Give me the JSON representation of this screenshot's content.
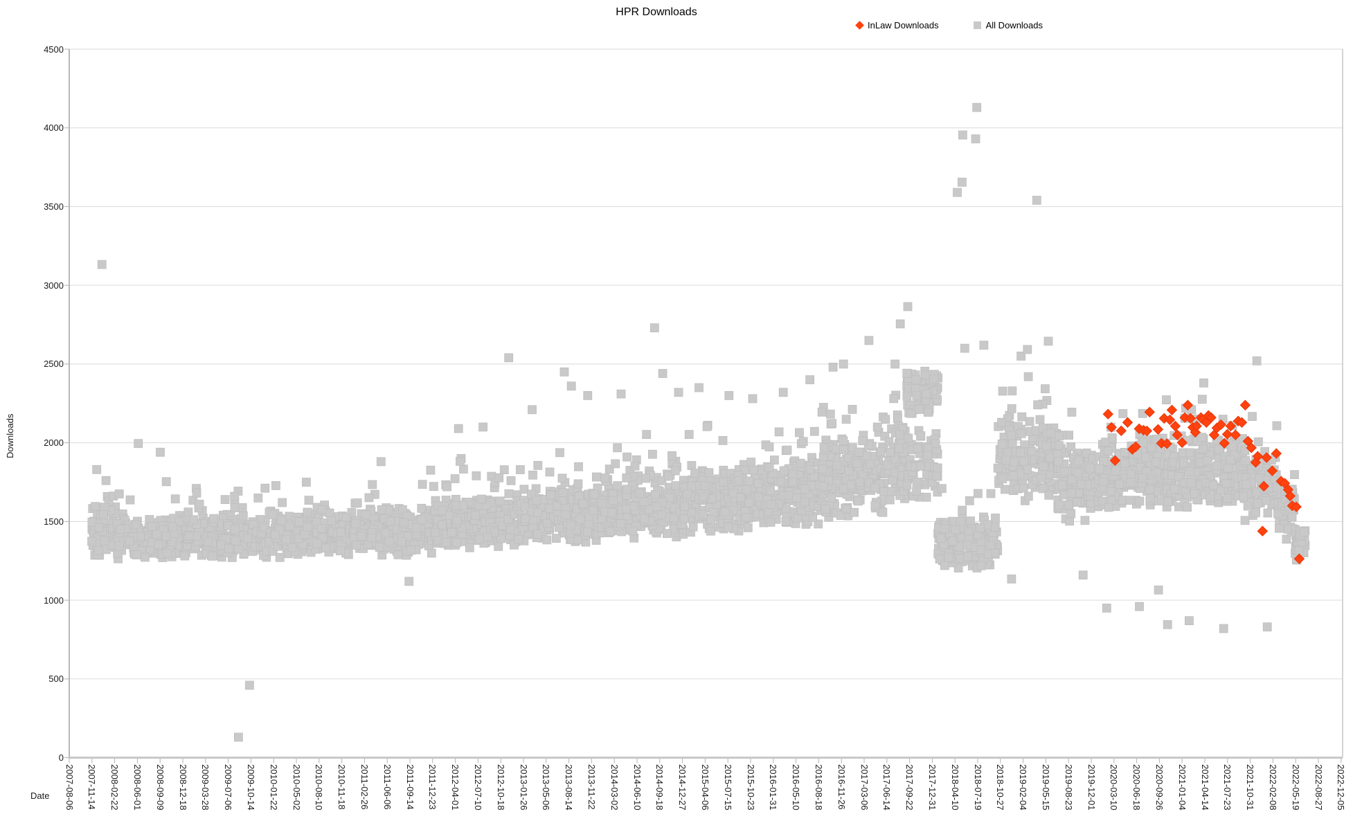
{
  "chart": {
    "title": "HPR Downloads",
    "x_axis_title": "Date",
    "y_axis_title": "Downloads"
  },
  "legend": {
    "items": [
      {
        "label": "InLaw Downloads",
        "marker": "diamond",
        "color": "#ff420e"
      },
      {
        "label": "All Downloads",
        "marker": "square",
        "color": "#c9c9c9"
      }
    ]
  },
  "colors": {
    "inlaw_series": "#ff420e",
    "all_series": "#c9c9c9",
    "gridline": "#dadada",
    "axis_line": "#b8b8b8",
    "text": "#1a1a1a"
  },
  "chart_data": {
    "type": "scatter",
    "title": "HPR Downloads",
    "xlabel": "Date",
    "ylabel": "Downloads",
    "ylim": [
      0,
      4500
    ],
    "y_ticks": [
      0,
      500,
      1000,
      1500,
      2000,
      2500,
      3000,
      3500,
      4000,
      4500
    ],
    "grid": "horizontal",
    "legend_position": "top",
    "x_epoch": "2007-08-06",
    "x_tick_interval_days": 100,
    "x_tick_labels": [
      "2007-08-06",
      "2007-11-14",
      "2008-02-22",
      "2008-06-01",
      "2008-09-09",
      "2008-12-18",
      "2009-03-28",
      "2009-07-06",
      "2009-10-14",
      "2010-01-22",
      "2010-05-02",
      "2010-08-10",
      "2010-11-18",
      "2011-02-26",
      "2011-06-06",
      "2011-09-14",
      "2011-12-23",
      "2012-04-01",
      "2012-07-10",
      "2012-10-18",
      "2013-01-26",
      "2013-05-06",
      "2013-08-14",
      "2013-11-22",
      "2014-03-02",
      "2014-06-10",
      "2014-09-18",
      "2014-12-27",
      "2015-04-06",
      "2015-07-15",
      "2015-10-23",
      "2016-01-31",
      "2016-05-10",
      "2016-08-18",
      "2016-11-26",
      "2017-03-06",
      "2017-06-14",
      "2017-09-22",
      "2017-12-31",
      "2018-04-10",
      "2018-07-19",
      "2018-10-27",
      "2019-02-04",
      "2019-05-15",
      "2019-08-23",
      "2019-12-01",
      "2020-03-10",
      "2020-06-18",
      "2020-09-26",
      "2021-01-04",
      "2021-04-14",
      "2021-07-23",
      "2021-10-31",
      "2022-02-08",
      "2022-05-19",
      "2022-08-27",
      "2022-12-05"
    ],
    "series": [
      {
        "name": "InLaw Downloads",
        "marker": "diamond",
        "color": "#ff420e",
        "points": [
          [
            "2020-02-13",
            2182
          ],
          [
            "2020-02-28",
            2098
          ],
          [
            "2020-03-15",
            1887
          ],
          [
            "2020-04-11",
            2076
          ],
          [
            "2020-05-09",
            2129
          ],
          [
            "2020-05-30",
            1958
          ],
          [
            "2020-06-14",
            1975
          ],
          [
            "2020-06-29",
            2089
          ],
          [
            "2020-07-18",
            2080
          ],
          [
            "2020-08-02",
            2075
          ],
          [
            "2020-08-14",
            2195
          ],
          [
            "2020-09-20",
            2085
          ],
          [
            "2020-10-05",
            1997
          ],
          [
            "2020-10-17",
            2155
          ],
          [
            "2020-10-29",
            1994
          ],
          [
            "2020-11-11",
            2146
          ],
          [
            "2020-11-20",
            2208
          ],
          [
            "2020-12-05",
            2106
          ],
          [
            "2020-12-14",
            2050
          ],
          [
            "2021-01-04",
            2001
          ],
          [
            "2021-01-16",
            2160
          ],
          [
            "2021-01-29",
            2239
          ],
          [
            "2021-02-10",
            2155
          ],
          [
            "2021-02-20",
            2098
          ],
          [
            "2021-03-03",
            2067
          ],
          [
            "2021-03-09",
            2106
          ],
          [
            "2021-03-28",
            2160
          ],
          [
            "2021-04-06",
            2147
          ],
          [
            "2021-04-21",
            2129
          ],
          [
            "2021-04-30",
            2173
          ],
          [
            "2021-05-12",
            2160
          ],
          [
            "2021-05-25",
            2050
          ],
          [
            "2021-06-06",
            2094
          ],
          [
            "2021-06-24",
            2115
          ],
          [
            "2021-07-09",
            1997
          ],
          [
            "2021-07-22",
            2054
          ],
          [
            "2021-08-06",
            2106
          ],
          [
            "2021-08-27",
            2050
          ],
          [
            "2021-09-08",
            2138
          ],
          [
            "2021-09-24",
            2129
          ],
          [
            "2021-10-09",
            2239
          ],
          [
            "2021-10-21",
            2010
          ],
          [
            "2021-11-05",
            1968
          ],
          [
            "2021-11-24",
            1875
          ],
          [
            "2021-12-03",
            1914
          ],
          [
            "2021-12-24",
            1439
          ],
          [
            "2021-12-30",
            1724
          ],
          [
            "2022-01-11",
            1906
          ],
          [
            "2022-02-05",
            1822
          ],
          [
            "2022-02-23",
            1932
          ],
          [
            "2022-03-16",
            1756
          ],
          [
            "2022-04-01",
            1743
          ],
          [
            "2022-04-16",
            1702
          ],
          [
            "2022-04-25",
            1662
          ],
          [
            "2022-05-04",
            1600
          ],
          [
            "2022-05-22",
            1593
          ],
          [
            "2022-06-04",
            1263
          ]
        ]
      },
      {
        "name": "All Downloads",
        "marker": "square",
        "color": "#c9c9c9",
        "representation": "daily point cloud (~5400 points) downsampled as band_segments plus explicit outlier_points",
        "outlier_points": [
          [
            "2007-12-28",
            3132
          ],
          [
            "2007-12-05",
            1830
          ],
          [
            "2008-01-15",
            1760
          ],
          [
            "2008-06-05",
            1995
          ],
          [
            "2008-09-10",
            1940
          ],
          [
            "2009-08-20",
            130
          ],
          [
            "2009-10-08",
            460
          ],
          [
            "2010-06-15",
            1750
          ],
          [
            "2011-05-10",
            1880
          ],
          [
            "2011-09-10",
            1120
          ],
          [
            "2012-04-15",
            2090
          ],
          [
            "2012-08-01",
            2100
          ],
          [
            "2012-11-22",
            2540
          ],
          [
            "2013-03-05",
            2210
          ],
          [
            "2013-07-25",
            2450
          ],
          [
            "2013-08-25",
            2360
          ],
          [
            "2013-11-05",
            2300
          ],
          [
            "2014-04-01",
            2310
          ],
          [
            "2014-08-26",
            2730
          ],
          [
            "2014-10-01",
            2440
          ],
          [
            "2014-12-10",
            2320
          ],
          [
            "2015-03-10",
            2350
          ],
          [
            "2015-07-20",
            2300
          ],
          [
            "2015-11-01",
            2280
          ],
          [
            "2016-03-15",
            2320
          ],
          [
            "2016-07-10",
            2400
          ],
          [
            "2016-10-20",
            2480
          ],
          [
            "2016-12-05",
            2500
          ],
          [
            "2017-03-27",
            2650
          ],
          [
            "2017-07-20",
            2500
          ],
          [
            "2017-09-14",
            2865
          ],
          [
            "2017-08-12",
            2755
          ],
          [
            "2018-05-23",
            2600
          ],
          [
            "2018-04-20",
            3590
          ],
          [
            "2018-05-14",
            3955
          ],
          [
            "2018-05-11",
            3655
          ],
          [
            "2018-07-15",
            4130
          ],
          [
            "2018-07-10",
            3930
          ],
          [
            "2018-08-15",
            2620
          ],
          [
            "2018-12-15",
            1135
          ],
          [
            "2019-02-27",
            2420
          ],
          [
            "2019-04-05",
            3540
          ],
          [
            "2019-05-26",
            2645
          ],
          [
            "2019-10-26",
            1160
          ],
          [
            "2020-02-07",
            950
          ],
          [
            "2020-06-30",
            960
          ],
          [
            "2020-09-22",
            1065
          ],
          [
            "2020-11-01",
            845
          ],
          [
            "2021-02-04",
            870
          ],
          [
            "2021-07-06",
            820
          ],
          [
            "2021-11-29",
            2520
          ],
          [
            "2022-01-14",
            830
          ]
        ],
        "band_segments": [
          {
            "start": "2007-11-10",
            "end": "2008-03-01",
            "center": 1430,
            "spread": 170,
            "tail": 0.06
          },
          {
            "start": "2008-03-01",
            "end": "2009-01-01",
            "center": 1400,
            "spread": 155,
            "tail": 0.06
          },
          {
            "start": "2009-01-01",
            "end": "2010-01-01",
            "center": 1400,
            "spread": 150,
            "tail": 0.05
          },
          {
            "start": "2010-01-01",
            "end": "2011-01-01",
            "center": 1420,
            "spread": 160,
            "tail": 0.05
          },
          {
            "start": "2011-01-01",
            "end": "2012-01-01",
            "center": 1440,
            "spread": 170,
            "tail": 0.06
          },
          {
            "start": "2012-01-01",
            "end": "2013-01-01",
            "center": 1490,
            "spread": 180,
            "tail": 0.07
          },
          {
            "start": "2013-01-01",
            "end": "2014-01-01",
            "center": 1540,
            "spread": 200,
            "tail": 0.07
          },
          {
            "start": "2014-01-01",
            "end": "2015-01-01",
            "center": 1590,
            "spread": 215,
            "tail": 0.07
          },
          {
            "start": "2015-01-01",
            "end": "2016-01-01",
            "center": 1640,
            "spread": 220,
            "tail": 0.07
          },
          {
            "start": "2016-01-01",
            "end": "2016-09-01",
            "center": 1680,
            "spread": 240,
            "tail": 0.07
          },
          {
            "start": "2016-09-01",
            "end": "2017-06-01",
            "center": 1780,
            "spread": 290,
            "tail": 0.08
          },
          {
            "start": "2017-06-01",
            "end": "2017-09-10",
            "center": 1880,
            "spread": 310,
            "tail": 0.08
          },
          {
            "start": "2017-09-10",
            "end": "2018-01-25",
            "center": 1850,
            "spread": 260,
            "tail": 0.02,
            "density": 0.5
          },
          {
            "start": "2017-09-10",
            "end": "2018-01-25",
            "center": 2320,
            "spread": 180,
            "tail": 0,
            "density": 0.55
          },
          {
            "start": "2018-01-25",
            "end": "2018-10-15",
            "center": 1360,
            "spread": 180,
            "tail": 0.03,
            "density": 0.7
          },
          {
            "start": "2018-10-15",
            "end": "2019-07-01",
            "center": 1900,
            "spread": 300,
            "tail": 0.06
          },
          {
            "start": "2019-07-01",
            "end": "2020-01-01",
            "center": 1760,
            "spread": 280,
            "tail": 0.05
          },
          {
            "start": "2020-01-01",
            "end": "2021-01-01",
            "center": 1800,
            "spread": 265,
            "tail": 0.05
          },
          {
            "start": "2021-01-01",
            "end": "2021-10-01",
            "center": 1840,
            "spread": 255,
            "tail": 0.05
          },
          {
            "start": "2021-10-01",
            "end": "2022-03-01",
            "center": 1730,
            "spread": 240,
            "tail": 0.04
          },
          {
            "start": "2022-03-01",
            "end": "2022-05-15",
            "center": 1560,
            "spread": 190,
            "tail": 0.02
          },
          {
            "start": "2022-05-15",
            "end": "2022-07-01",
            "center": 1360,
            "spread": 130,
            "tail": 0
          }
        ]
      }
    ]
  }
}
